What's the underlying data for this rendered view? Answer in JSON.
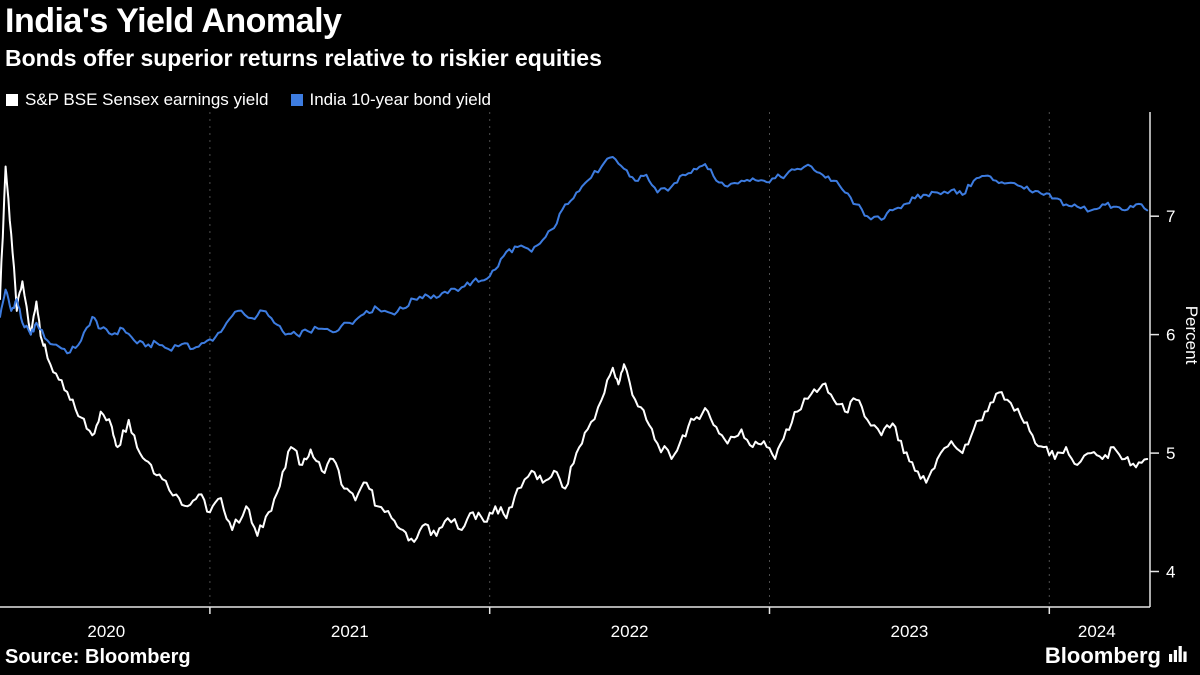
{
  "header": {
    "title": "India's Yield Anomaly",
    "subtitle": "Bonds offer superior returns relative to riskier equities"
  },
  "legend": [
    {
      "key": "sensex-earnings-yield",
      "label": "S&P BSE Sensex earnings yield",
      "color": "#ffffff"
    },
    {
      "key": "india-10y-bond-yield",
      "label": "India 10-year bond yield",
      "color": "#3d7ce0"
    }
  ],
  "footer": {
    "source_label": "Source: Bloomberg",
    "brand": "Bloomberg"
  },
  "chart_data": {
    "type": "line",
    "title": "India's Yield Anomaly",
    "subtitle": "Bonds offer superior returns relative to riskier equities",
    "xlabel": "",
    "ylabel": "Percent",
    "x_range": [
      2020.25,
      2024.36
    ],
    "y_range": [
      3.7,
      7.88
    ],
    "y_ticks": [
      4,
      5,
      6,
      7
    ],
    "x_gridlines": [
      2021,
      2022,
      2023,
      2024
    ],
    "x_tick_labels": [
      {
        "label": "2020",
        "x": 2020.63
      },
      {
        "label": "2021",
        "x": 2021.5
      },
      {
        "label": "2022",
        "x": 2022.5
      },
      {
        "label": "2023",
        "x": 2023.5
      },
      {
        "label": "2024",
        "x": 2024.17
      }
    ],
    "grid": "vertical-dotted",
    "legend_position": "top-left",
    "background": "#000000",
    "axis_color": "#e6e6e6",
    "gridline_color": "#4d4d4d",
    "series": [
      {
        "key": "sensex-earnings-yield",
        "name": "S&P BSE Sensex earnings yield",
        "color": "#ffffff",
        "points": [
          [
            2020.25,
            6.3
          ],
          [
            2020.27,
            7.42
          ],
          [
            2020.29,
            6.85
          ],
          [
            2020.31,
            6.2
          ],
          [
            2020.33,
            6.45
          ],
          [
            2020.36,
            6.0
          ],
          [
            2020.38,
            6.28
          ],
          [
            2020.4,
            5.95
          ],
          [
            2020.42,
            5.8
          ],
          [
            2020.46,
            5.62
          ],
          [
            2020.5,
            5.45
          ],
          [
            2020.54,
            5.3
          ],
          [
            2020.58,
            5.15
          ],
          [
            2020.61,
            5.35
          ],
          [
            2020.65,
            5.22
          ],
          [
            2020.67,
            5.05
          ],
          [
            2020.71,
            5.28
          ],
          [
            2020.75,
            5.0
          ],
          [
            2020.79,
            4.9
          ],
          [
            2020.83,
            4.78
          ],
          [
            2020.88,
            4.65
          ],
          [
            2020.92,
            4.55
          ],
          [
            2020.96,
            4.65
          ],
          [
            2021.0,
            4.5
          ],
          [
            2021.04,
            4.62
          ],
          [
            2021.08,
            4.35
          ],
          [
            2021.13,
            4.55
          ],
          [
            2021.17,
            4.3
          ],
          [
            2021.21,
            4.5
          ],
          [
            2021.25,
            4.72
          ],
          [
            2021.29,
            5.05
          ],
          [
            2021.33,
            4.9
          ],
          [
            2021.36,
            5.03
          ],
          [
            2021.4,
            4.85
          ],
          [
            2021.44,
            4.95
          ],
          [
            2021.48,
            4.7
          ],
          [
            2021.52,
            4.6
          ],
          [
            2021.56,
            4.75
          ],
          [
            2021.6,
            4.55
          ],
          [
            2021.65,
            4.45
          ],
          [
            2021.69,
            4.35
          ],
          [
            2021.73,
            4.25
          ],
          [
            2021.77,
            4.4
          ],
          [
            2021.81,
            4.3
          ],
          [
            2021.85,
            4.45
          ],
          [
            2021.9,
            4.35
          ],
          [
            2021.94,
            4.5
          ],
          [
            2021.98,
            4.42
          ],
          [
            2022.02,
            4.55
          ],
          [
            2022.06,
            4.45
          ],
          [
            2022.1,
            4.7
          ],
          [
            2022.15,
            4.85
          ],
          [
            2022.19,
            4.75
          ],
          [
            2022.23,
            4.85
          ],
          [
            2022.27,
            4.7
          ],
          [
            2022.31,
            5.0
          ],
          [
            2022.35,
            5.2
          ],
          [
            2022.4,
            5.45
          ],
          [
            2022.44,
            5.72
          ],
          [
            2022.46,
            5.58
          ],
          [
            2022.48,
            5.75
          ],
          [
            2022.52,
            5.45
          ],
          [
            2022.56,
            5.28
          ],
          [
            2022.6,
            5.08
          ],
          [
            2022.65,
            4.95
          ],
          [
            2022.69,
            5.15
          ],
          [
            2022.73,
            5.28
          ],
          [
            2022.77,
            5.38
          ],
          [
            2022.81,
            5.22
          ],
          [
            2022.85,
            5.08
          ],
          [
            2022.9,
            5.2
          ],
          [
            2022.94,
            5.05
          ],
          [
            2022.98,
            5.1
          ],
          [
            2023.02,
            4.95
          ],
          [
            2023.06,
            5.2
          ],
          [
            2023.1,
            5.35
          ],
          [
            2023.15,
            5.5
          ],
          [
            2023.19,
            5.58
          ],
          [
            2023.23,
            5.45
          ],
          [
            2023.27,
            5.35
          ],
          [
            2023.31,
            5.45
          ],
          [
            2023.35,
            5.28
          ],
          [
            2023.4,
            5.15
          ],
          [
            2023.44,
            5.25
          ],
          [
            2023.48,
            5.0
          ],
          [
            2023.52,
            4.85
          ],
          [
            2023.56,
            4.75
          ],
          [
            2023.6,
            4.95
          ],
          [
            2023.65,
            5.1
          ],
          [
            2023.69,
            5.0
          ],
          [
            2023.73,
            5.2
          ],
          [
            2023.77,
            5.35
          ],
          [
            2023.81,
            5.5
          ],
          [
            2023.85,
            5.45
          ],
          [
            2023.9,
            5.3
          ],
          [
            2023.94,
            5.15
          ],
          [
            2023.98,
            5.05
          ],
          [
            2024.02,
            4.95
          ],
          [
            2024.06,
            5.05
          ],
          [
            2024.1,
            4.9
          ],
          [
            2024.15,
            5.0
          ],
          [
            2024.19,
            4.95
          ],
          [
            2024.23,
            5.05
          ],
          [
            2024.27,
            4.95
          ],
          [
            2024.31,
            4.88
          ],
          [
            2024.35,
            4.95
          ]
        ]
      },
      {
        "key": "india-10y-bond-yield",
        "name": "India 10-year bond yield",
        "color": "#3d7ce0",
        "points": [
          [
            2020.25,
            6.15
          ],
          [
            2020.27,
            6.38
          ],
          [
            2020.29,
            6.2
          ],
          [
            2020.31,
            6.3
          ],
          [
            2020.33,
            6.1
          ],
          [
            2020.36,
            6.0
          ],
          [
            2020.38,
            6.1
          ],
          [
            2020.42,
            5.95
          ],
          [
            2020.46,
            5.9
          ],
          [
            2020.5,
            5.85
          ],
          [
            2020.54,
            5.95
          ],
          [
            2020.58,
            6.15
          ],
          [
            2020.61,
            6.05
          ],
          [
            2020.65,
            6.0
          ],
          [
            2020.69,
            6.05
          ],
          [
            2020.73,
            5.95
          ],
          [
            2020.77,
            5.9
          ],
          [
            2020.81,
            5.93
          ],
          [
            2020.85,
            5.88
          ],
          [
            2020.9,
            5.92
          ],
          [
            2020.94,
            5.88
          ],
          [
            2020.98,
            5.93
          ],
          [
            2021.02,
            5.98
          ],
          [
            2021.06,
            6.1
          ],
          [
            2021.1,
            6.2
          ],
          [
            2021.15,
            6.14
          ],
          [
            2021.19,
            6.2
          ],
          [
            2021.23,
            6.1
          ],
          [
            2021.27,
            6.0
          ],
          [
            2021.31,
            6.0
          ],
          [
            2021.35,
            6.03
          ],
          [
            2021.4,
            6.05
          ],
          [
            2021.44,
            6.02
          ],
          [
            2021.48,
            6.1
          ],
          [
            2021.52,
            6.12
          ],
          [
            2021.56,
            6.2
          ],
          [
            2021.6,
            6.22
          ],
          [
            2021.65,
            6.18
          ],
          [
            2021.69,
            6.22
          ],
          [
            2021.73,
            6.3
          ],
          [
            2021.77,
            6.34
          ],
          [
            2021.81,
            6.31
          ],
          [
            2021.85,
            6.35
          ],
          [
            2021.9,
            6.4
          ],
          [
            2021.94,
            6.45
          ],
          [
            2021.98,
            6.46
          ],
          [
            2022.02,
            6.55
          ],
          [
            2022.06,
            6.7
          ],
          [
            2022.1,
            6.74
          ],
          [
            2022.15,
            6.7
          ],
          [
            2022.19,
            6.8
          ],
          [
            2022.23,
            6.9
          ],
          [
            2022.27,
            7.1
          ],
          [
            2022.31,
            7.2
          ],
          [
            2022.35,
            7.3
          ],
          [
            2022.4,
            7.42
          ],
          [
            2022.44,
            7.5
          ],
          [
            2022.48,
            7.4
          ],
          [
            2022.52,
            7.3
          ],
          [
            2022.56,
            7.35
          ],
          [
            2022.6,
            7.2
          ],
          [
            2022.65,
            7.25
          ],
          [
            2022.69,
            7.35
          ],
          [
            2022.73,
            7.4
          ],
          [
            2022.77,
            7.44
          ],
          [
            2022.81,
            7.3
          ],
          [
            2022.85,
            7.25
          ],
          [
            2022.9,
            7.3
          ],
          [
            2022.94,
            7.32
          ],
          [
            2022.98,
            7.3
          ],
          [
            2023.02,
            7.32
          ],
          [
            2023.06,
            7.35
          ],
          [
            2023.1,
            7.4
          ],
          [
            2023.15,
            7.42
          ],
          [
            2023.19,
            7.35
          ],
          [
            2023.23,
            7.3
          ],
          [
            2023.27,
            7.2
          ],
          [
            2023.31,
            7.1
          ],
          [
            2023.35,
            7.0
          ],
          [
            2023.4,
            6.97
          ],
          [
            2023.44,
            7.05
          ],
          [
            2023.48,
            7.1
          ],
          [
            2023.52,
            7.15
          ],
          [
            2023.56,
            7.18
          ],
          [
            2023.6,
            7.2
          ],
          [
            2023.65,
            7.22
          ],
          [
            2023.69,
            7.18
          ],
          [
            2023.73,
            7.3
          ],
          [
            2023.77,
            7.34
          ],
          [
            2023.81,
            7.3
          ],
          [
            2023.85,
            7.28
          ],
          [
            2023.9,
            7.25
          ],
          [
            2023.94,
            7.2
          ],
          [
            2023.98,
            7.18
          ],
          [
            2024.02,
            7.15
          ],
          [
            2024.06,
            7.1
          ],
          [
            2024.1,
            7.08
          ],
          [
            2024.15,
            7.05
          ],
          [
            2024.19,
            7.1
          ],
          [
            2024.23,
            7.08
          ],
          [
            2024.27,
            7.05
          ],
          [
            2024.31,
            7.1
          ],
          [
            2024.35,
            7.05
          ]
        ]
      }
    ]
  }
}
